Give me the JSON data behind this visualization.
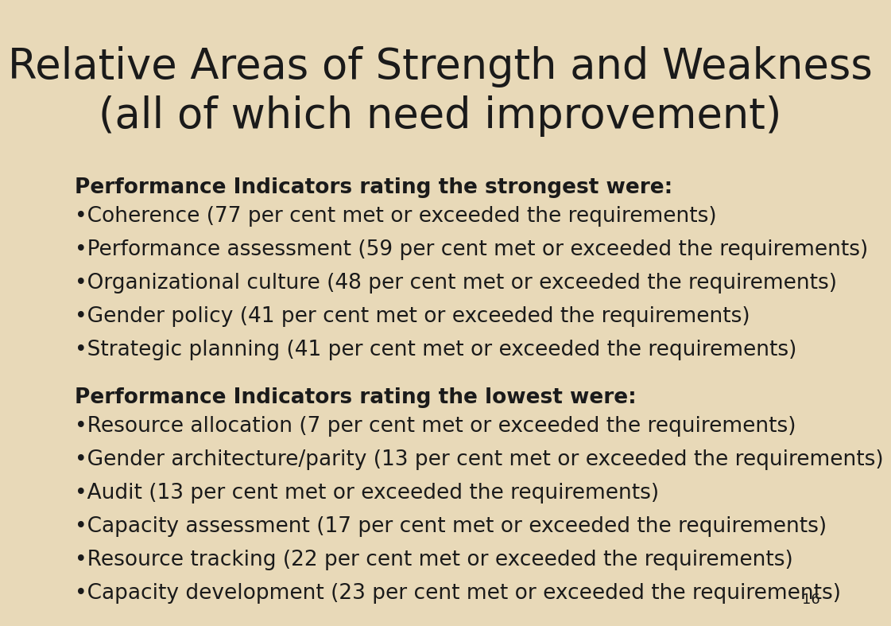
{
  "background_color": "#e8d9b8",
  "title_line1": "Relative Areas of Strength and Weakness",
  "title_line2": "(all of which need improvement)",
  "title_fontsize": 38,
  "title_color": "#1a1a1a",
  "section1_header": "Performance Indicators rating the strongest were:",
  "section1_items": [
    "•Coherence (77 per cent met or exceeded the requirements)",
    "•Performance assessment (59 per cent met or exceeded the requirements)",
    "•Organizational culture (48 per cent met or exceeded the requirements)",
    "•Gender policy (41 per cent met or exceeded the requirements)",
    "•Strategic planning (41 per cent met or exceeded the requirements)"
  ],
  "section2_header": "Performance Indicators rating the lowest were:",
  "section2_items": [
    "•Resource allocation (7 per cent met or exceeded the requirements)",
    "•Gender architecture/parity (13 per cent met or exceeded the requirements)",
    "•Audit (13 per cent met or exceeded the requirements)",
    "•Capacity assessment (17 per cent met or exceeded the requirements)",
    "•Resource tracking (22 per cent met or exceeded the requirements)",
    "•Capacity development (23 per cent met or exceeded the requirements)"
  ],
  "header_fontsize": 19,
  "item_fontsize": 19,
  "text_color": "#1a1a1a",
  "page_number": "16",
  "page_number_fontsize": 13
}
